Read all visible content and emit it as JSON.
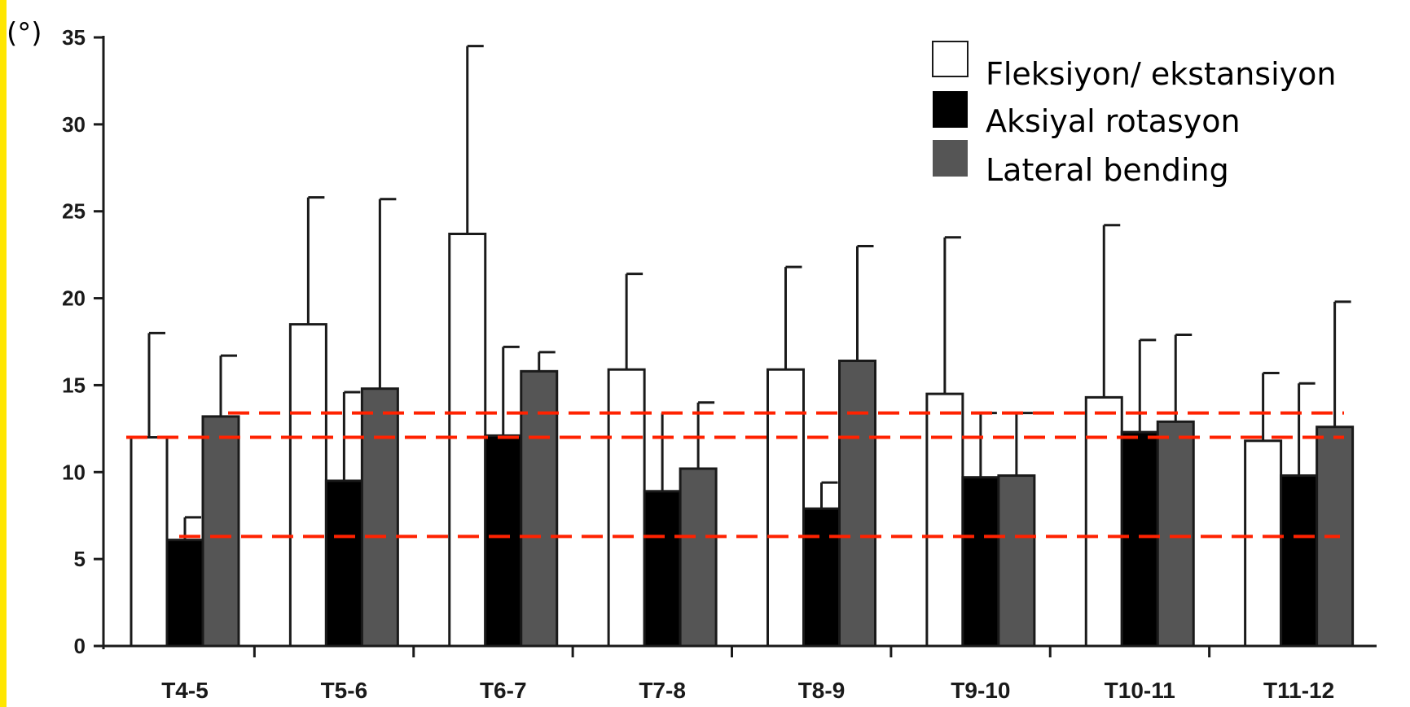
{
  "colors": {
    "side_strip": "#ffe600",
    "axis": "#1a1a1a",
    "reference_lines": "#ff2200",
    "flexion_fill": "#ffffff",
    "rotation_fill": "#000000",
    "lateral_fill": "#555555"
  },
  "chart_data": {
    "type": "bar",
    "title": "",
    "xlabel": "",
    "ylabel": "",
    "unit_label": "(°)",
    "ylim": [
      0,
      35
    ],
    "yticks": [
      0,
      5,
      10,
      15,
      20,
      25,
      30,
      35
    ],
    "grid": false,
    "legend_position": "top-right",
    "categories": [
      "T4-5",
      "T5-6",
      "T6-7",
      "T7-8",
      "T8-9",
      "T9-10",
      "T10-11",
      "T11-12"
    ],
    "series": [
      {
        "name": "Fleksiyon/ ekstansiyon",
        "values": [
          12.0,
          18.5,
          23.7,
          15.9,
          15.9,
          14.5,
          14.3,
          11.8
        ],
        "error_upper": [
          18.0,
          25.8,
          34.5,
          21.4,
          21.8,
          23.5,
          24.2,
          15.7
        ]
      },
      {
        "name": "Aksiyal rotasyon",
        "values": [
          6.1,
          9.5,
          12.1,
          8.9,
          7.9,
          9.7,
          12.3,
          9.8
        ],
        "error_upper": [
          7.4,
          14.6,
          17.2,
          13.4,
          9.4,
          13.4,
          17.6,
          15.1
        ]
      },
      {
        "name": "Lateral bending",
        "values": [
          13.2,
          14.8,
          15.8,
          10.2,
          16.4,
          9.8,
          12.9,
          12.6
        ],
        "error_upper": [
          16.7,
          25.7,
          16.9,
          14.0,
          23.0,
          13.4,
          17.9,
          19.8
        ]
      }
    ],
    "reference_lines": [
      13.4,
      12.0,
      6.3
    ]
  }
}
